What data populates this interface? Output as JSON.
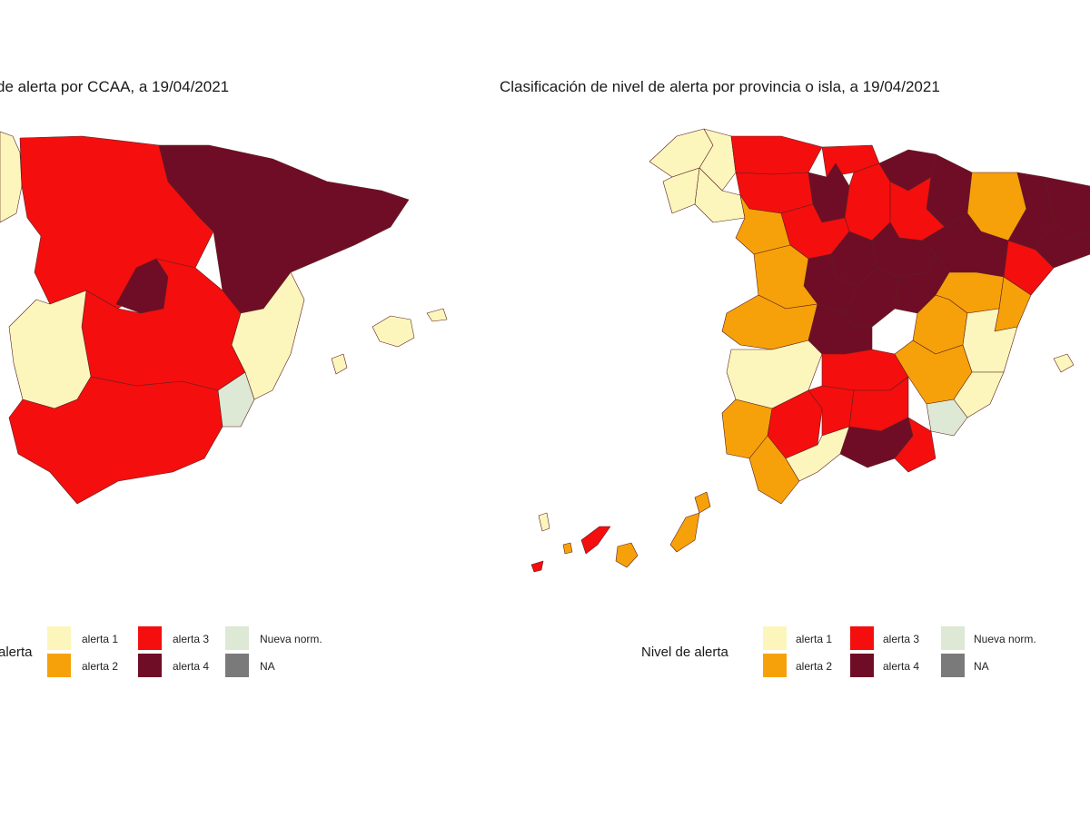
{
  "left_map": {
    "title": "de alerta por CCAA, a 19/04/2021"
  },
  "right_map": {
    "title": "Clasificación de nivel de alerta por provincia o isla, a 19/04/2021"
  },
  "legend": {
    "left_title": "alerta",
    "right_title": "Nivel de alerta",
    "items": [
      {
        "key": "a1",
        "label": "alerta 1",
        "color": "#fcf6bc"
      },
      {
        "key": "a2",
        "label": "alerta 2",
        "color": "#f7a10a"
      },
      {
        "key": "a3",
        "label": "alerta 3",
        "color": "#f40e0e"
      },
      {
        "key": "a4",
        "label": "alerta 4",
        "color": "#700d26"
      },
      {
        "key": "nn",
        "label": "Nueva norm.",
        "color": "#dde8d5"
      },
      {
        "key": "na",
        "label": "NA",
        "color": "#7a7a7a"
      }
    ]
  }
}
